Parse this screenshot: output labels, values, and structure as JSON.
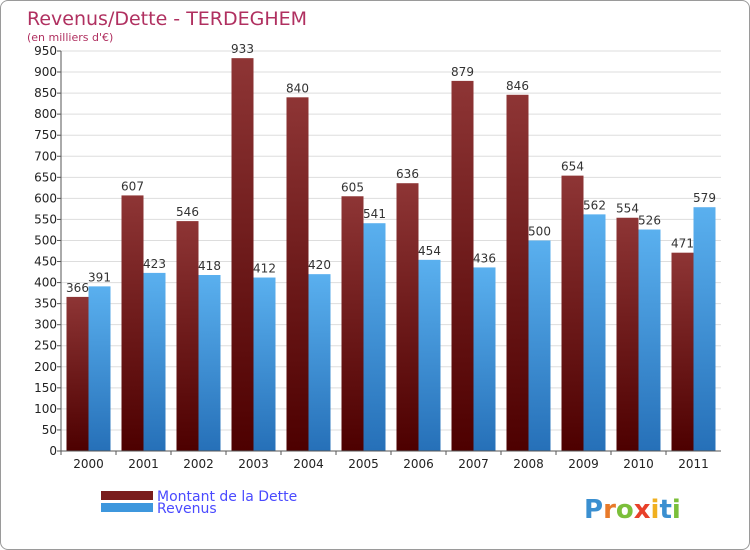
{
  "chart_data": {
    "type": "bar",
    "title": "Revenus/Dette - TERDEGHEM",
    "subtitle": "(en milliers d'€)",
    "categories": [
      "2000",
      "2001",
      "2002",
      "2003",
      "2004",
      "2005",
      "2006",
      "2007",
      "2008",
      "2009",
      "2010",
      "2011"
    ],
    "series": [
      {
        "name": "Montant de la Dette",
        "color": "#7a1c1c",
        "values": [
          366,
          607,
          546,
          933,
          840,
          605,
          636,
          879,
          846,
          654,
          554,
          471
        ]
      },
      {
        "name": "Revenus",
        "color": "#3d97dd",
        "values": [
          391,
          423,
          418,
          412,
          420,
          541,
          454,
          436,
          500,
          562,
          526,
          579
        ]
      }
    ],
    "ylim": [
      0,
      950
    ],
    "ytick_step": 50,
    "grid": true,
    "legend_position": "bottom-left"
  },
  "brand": {
    "letters": [
      {
        "ch": "P",
        "color": "#3a8fd0"
      },
      {
        "ch": "r",
        "color": "#e87a2a"
      },
      {
        "ch": "o",
        "color": "#7bbf3a"
      },
      {
        "ch": "x",
        "color": "#e8402a"
      },
      {
        "ch": "i",
        "color": "#f0b020"
      },
      {
        "ch": "t",
        "color": "#3a8fd0"
      },
      {
        "ch": "i",
        "color": "#7bbf3a"
      }
    ]
  }
}
